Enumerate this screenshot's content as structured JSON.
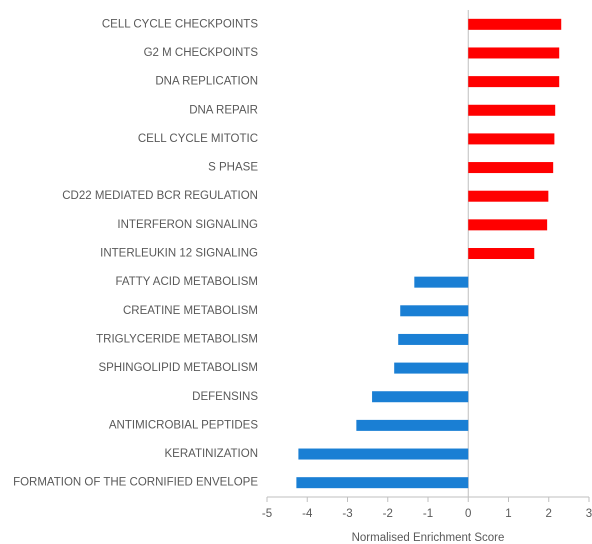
{
  "chart_data": {
    "type": "hbar",
    "categories": [
      "CELL CYCLE CHECKPOINTS",
      "G2 M CHECKPOINTS",
      "DNA REPLICATION",
      "DNA REPAIR",
      "CELL CYCLE MITOTIC",
      "S PHASE",
      "CD22 MEDIATED BCR REGULATION",
      "INTERFERON SIGNALING",
      "INTERLEUKIN 12 SIGNALING",
      "FATTY ACID METABOLISM",
      "CREATINE METABOLISM",
      "TRIGLYCERIDE METABOLISM",
      "SPHINGOLIPID METABOLISM",
      "DEFENSINS",
      "ANTIMICROBIAL PEPTIDES",
      "KERATINIZATION",
      "FORMATION OF THE CORNIFIED ENVELOPE"
    ],
    "values": [
      2.31,
      2.26,
      2.26,
      2.16,
      2.14,
      2.11,
      1.99,
      1.96,
      1.64,
      -1.34,
      -1.69,
      -1.74,
      -1.84,
      -2.39,
      -2.78,
      -4.22,
      -4.27
    ],
    "colors": [
      "#ff0000",
      "#ff0000",
      "#ff0000",
      "#ff0000",
      "#ff0000",
      "#ff0000",
      "#ff0000",
      "#ff0000",
      "#ff0000",
      "#1a7fd4",
      "#1a7fd4",
      "#1a7fd4",
      "#1a7fd4",
      "#1a7fd4",
      "#1a7fd4",
      "#1a7fd4",
      "#1a7fd4"
    ],
    "x_label": "Normalised Enrichment Score",
    "xlim": [
      -5,
      3
    ],
    "xticks": [
      -5,
      -4,
      -3,
      -2,
      -1,
      0,
      1,
      2,
      3
    ]
  }
}
